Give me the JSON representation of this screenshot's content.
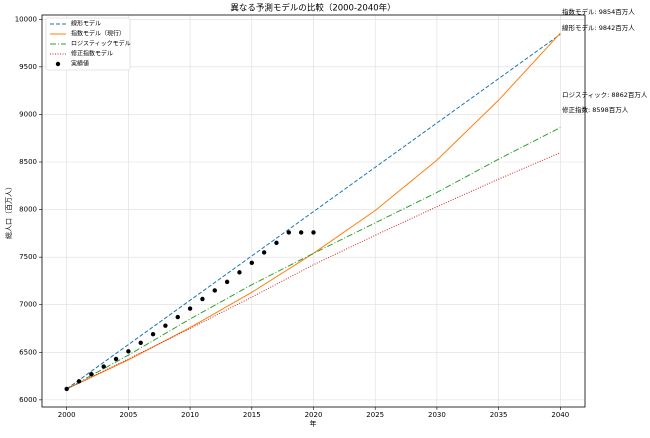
{
  "chart_data": {
    "type": "line",
    "title": "異なる予測モデルの比較（2000-2040年）",
    "xlabel": "年",
    "ylabel": "総人口（百万人）",
    "xlim": [
      1998,
      2042
    ],
    "ylim": [
      5925,
      10045
    ],
    "xticks": [
      2000,
      2005,
      2010,
      2015,
      2020,
      2025,
      2030,
      2035,
      2040
    ],
    "yticks": [
      6000,
      6500,
      7000,
      7500,
      8000,
      8500,
      9000,
      9500,
      10000
    ],
    "grid": true,
    "legend": "upper left",
    "series": [
      {
        "name": "線形モデル",
        "color": "#1f77b4",
        "style": "dashed",
        "x": [
          2000,
          2040
        ],
        "values": [
          6115,
          9842
        ]
      },
      {
        "name": "指数モデル（現行）",
        "color": "#ff7f0e",
        "style": "solid",
        "x": [
          2000,
          2005,
          2010,
          2015,
          2020,
          2025,
          2030,
          2035,
          2040
        ],
        "values": [
          6115,
          6420,
          6760,
          7130,
          7540,
          7990,
          8520,
          9150,
          9854
        ]
      },
      {
        "name": "ロジスティックモデル",
        "color": "#2ca02c",
        "style": "dashdot",
        "x": [
          2000,
          2005,
          2010,
          2015,
          2020,
          2025,
          2030,
          2035,
          2040
        ],
        "values": [
          6115,
          6470,
          6850,
          7210,
          7540,
          7860,
          8180,
          8530,
          8862
        ]
      },
      {
        "name": "修正指数モデル",
        "color": "#d62728",
        "style": "dotted",
        "x": [
          2000,
          2005,
          2010,
          2015,
          2020,
          2025,
          2030,
          2035,
          2040
        ],
        "values": [
          6115,
          6430,
          6750,
          7080,
          7420,
          7730,
          8030,
          8320,
          8598
        ]
      },
      {
        "name": "実績値",
        "color": "#000000",
        "style": "scatter",
        "x": [
          2000,
          2001,
          2002,
          2003,
          2004,
          2005,
          2006,
          2007,
          2008,
          2009,
          2010,
          2011,
          2012,
          2013,
          2014,
          2015,
          2016,
          2017,
          2018,
          2019,
          2020
        ],
        "values": [
          6115,
          6195,
          6270,
          6350,
          6430,
          6510,
          6600,
          6690,
          6780,
          6870,
          6960,
          7060,
          7150,
          7240,
          7340,
          7440,
          7550,
          7650,
          7760,
          7760,
          7760
        ]
      }
    ],
    "annotations": [
      "指数モデル: 9854百万人",
      "線形モデル: 9842百万人",
      "ロジスティック: 8862百万人",
      "修正指数: 8598百万人"
    ]
  }
}
